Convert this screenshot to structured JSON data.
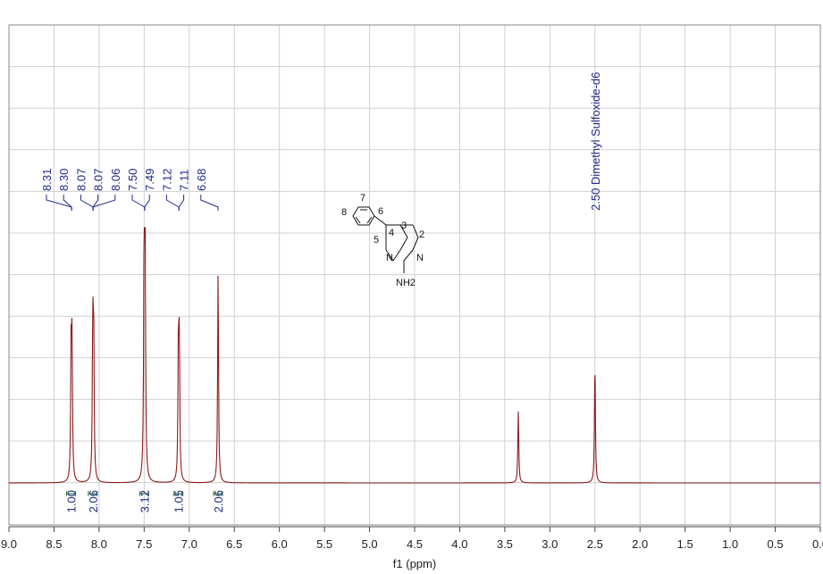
{
  "chart_data": {
    "type": "line",
    "title": "",
    "xlabel": "f1 (ppm)",
    "ylabel": "",
    "xlim": [
      9.0,
      0.0
    ],
    "reversed_x": true,
    "grid": true,
    "x_ticks": [
      "9.0",
      "8.5",
      "8.0",
      "7.5",
      "7.0",
      "6.5",
      "6.0",
      "5.5",
      "5.0",
      "4.5",
      "4.0",
      "3.5",
      "3.0",
      "2.5",
      "2.0",
      "1.5",
      "1.0",
      "0.5",
      "0.0"
    ],
    "spectrum_color": "#8b1a1a",
    "label_color": "#1f2a8a",
    "integral_color": "#2e7d32",
    "peaks": [
      {
        "ppm": 8.31,
        "height": 0.52
      },
      {
        "ppm": 8.3,
        "height": 0.5
      },
      {
        "ppm": 8.07,
        "height": 0.58
      },
      {
        "ppm": 8.06,
        "height": 0.56
      },
      {
        "ppm": 7.5,
        "height": 0.96
      },
      {
        "ppm": 7.49,
        "height": 0.94
      },
      {
        "ppm": 7.12,
        "height": 0.52
      },
      {
        "ppm": 7.11,
        "height": 0.51
      },
      {
        "ppm": 6.68,
        "height": 0.82
      },
      {
        "ppm": 3.35,
        "height": 0.28
      },
      {
        "ppm": 2.5,
        "height": 0.48
      }
    ],
    "peak_labels": [
      "8.31",
      "8.30",
      "8.07",
      "8.07",
      "8.06",
      "7.50",
      "7.49",
      "7.12",
      "7.11",
      "6.68"
    ],
    "solvent_label": "2.50 Dimethyl Sulfoxide-d6",
    "integrals": [
      {
        "ppm": 8.31,
        "value": "1.00"
      },
      {
        "ppm": 8.07,
        "value": "2.06"
      },
      {
        "ppm": 7.5,
        "value": "3.12"
      },
      {
        "ppm": 7.12,
        "value": "1.05"
      },
      {
        "ppm": 6.68,
        "value": "2.06"
      }
    ]
  },
  "molecule": {
    "atoms": [
      "7",
      "8",
      "6",
      "5",
      "4",
      "3",
      "2",
      "N",
      "N",
      "NH2"
    ]
  }
}
